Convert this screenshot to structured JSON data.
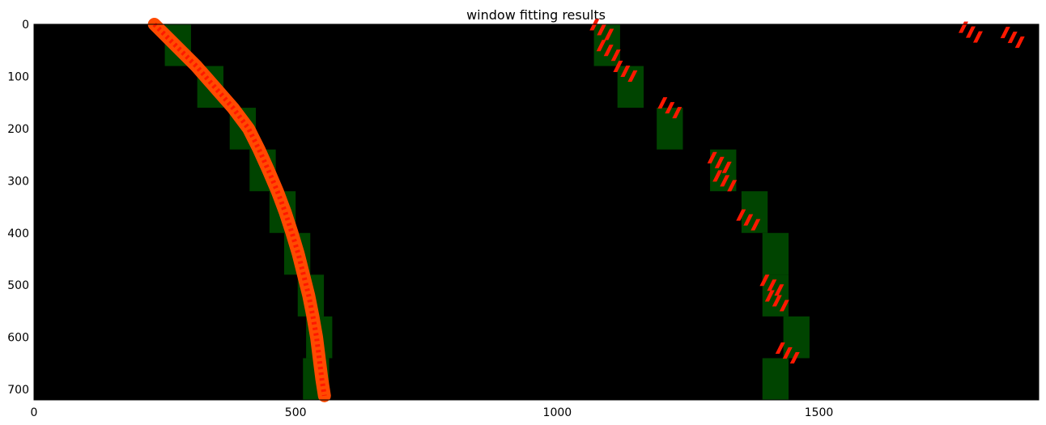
{
  "chart_data": {
    "type": "image",
    "title": "window fitting results",
    "xlim": [
      0,
      1920
    ],
    "ylim": [
      720,
      0
    ],
    "x_ticks": [
      0,
      500,
      1000,
      1500
    ],
    "y_ticks": [
      0,
      100,
      200,
      300,
      400,
      500,
      600,
      700
    ],
    "x_tick_labels": [
      "0",
      "500",
      "1000",
      "1500"
    ],
    "y_tick_labels": [
      "0",
      "100",
      "200",
      "300",
      "400",
      "500",
      "600",
      "700"
    ],
    "colors": {
      "background": "#000000",
      "window": "#004400",
      "lane_pixels": "#ff1800",
      "lane_fill": "#ff4a00"
    },
    "windows": [
      {
        "x": [
          250,
          300
        ],
        "y": [
          0,
          80
        ]
      },
      {
        "x": [
          312,
          362
        ],
        "y": [
          80,
          160
        ]
      },
      {
        "x": [
          374,
          424
        ],
        "y": [
          160,
          240
        ]
      },
      {
        "x": [
          412,
          462
        ],
        "y": [
          240,
          320
        ]
      },
      {
        "x": [
          450,
          500
        ],
        "y": [
          320,
          400
        ]
      },
      {
        "x": [
          478,
          528
        ],
        "y": [
          400,
          480
        ]
      },
      {
        "x": [
          504,
          554
        ],
        "y": [
          480,
          560
        ]
      },
      {
        "x": [
          520,
          570
        ],
        "y": [
          560,
          640
        ]
      },
      {
        "x": [
          514,
          564
        ],
        "y": [
          640,
          720
        ]
      },
      {
        "x": [
          1070,
          1120
        ],
        "y": [
          0,
          80
        ]
      },
      {
        "x": [
          1115,
          1165
        ],
        "y": [
          80,
          160
        ]
      },
      {
        "x": [
          1190,
          1240
        ],
        "y": [
          160,
          240
        ]
      },
      {
        "x": [
          1292,
          1342
        ],
        "y": [
          240,
          320
        ]
      },
      {
        "x": [
          1352,
          1402
        ],
        "y": [
          320,
          400
        ]
      },
      {
        "x": [
          1392,
          1442
        ],
        "y": [
          400,
          480
        ]
      },
      {
        "x": [
          1392,
          1442
        ],
        "y": [
          480,
          560
        ]
      },
      {
        "x": [
          1432,
          1482
        ],
        "y": [
          560,
          640
        ]
      },
      {
        "x": [
          1392,
          1442
        ],
        "y": [
          640,
          720
        ]
      }
    ],
    "left_lane": [
      {
        "x": 230,
        "y": 0
      },
      {
        "x": 270,
        "y": 40
      },
      {
        "x": 310,
        "y": 80
      },
      {
        "x": 345,
        "y": 120
      },
      {
        "x": 380,
        "y": 160
      },
      {
        "x": 410,
        "y": 200
      },
      {
        "x": 430,
        "y": 240
      },
      {
        "x": 448,
        "y": 280
      },
      {
        "x": 465,
        "y": 320
      },
      {
        "x": 480,
        "y": 360
      },
      {
        "x": 493,
        "y": 400
      },
      {
        "x": 505,
        "y": 440
      },
      {
        "x": 515,
        "y": 480
      },
      {
        "x": 525,
        "y": 520
      },
      {
        "x": 533,
        "y": 560
      },
      {
        "x": 540,
        "y": 600
      },
      {
        "x": 545,
        "y": 640
      },
      {
        "x": 550,
        "y": 680
      },
      {
        "x": 555,
        "y": 712
      }
    ],
    "right_lane_patches": [
      {
        "x": 1085,
        "y": 10
      },
      {
        "x": 1098,
        "y": 50
      },
      {
        "x": 1130,
        "y": 90
      },
      {
        "x": 1215,
        "y": 160
      },
      {
        "x": 1310,
        "y": 265
      },
      {
        "x": 1320,
        "y": 300
      },
      {
        "x": 1365,
        "y": 375
      },
      {
        "x": 1410,
        "y": 500
      },
      {
        "x": 1420,
        "y": 530
      },
      {
        "x": 1440,
        "y": 630
      },
      {
        "x": 1790,
        "y": 15
      },
      {
        "x": 1870,
        "y": 25
      }
    ]
  }
}
